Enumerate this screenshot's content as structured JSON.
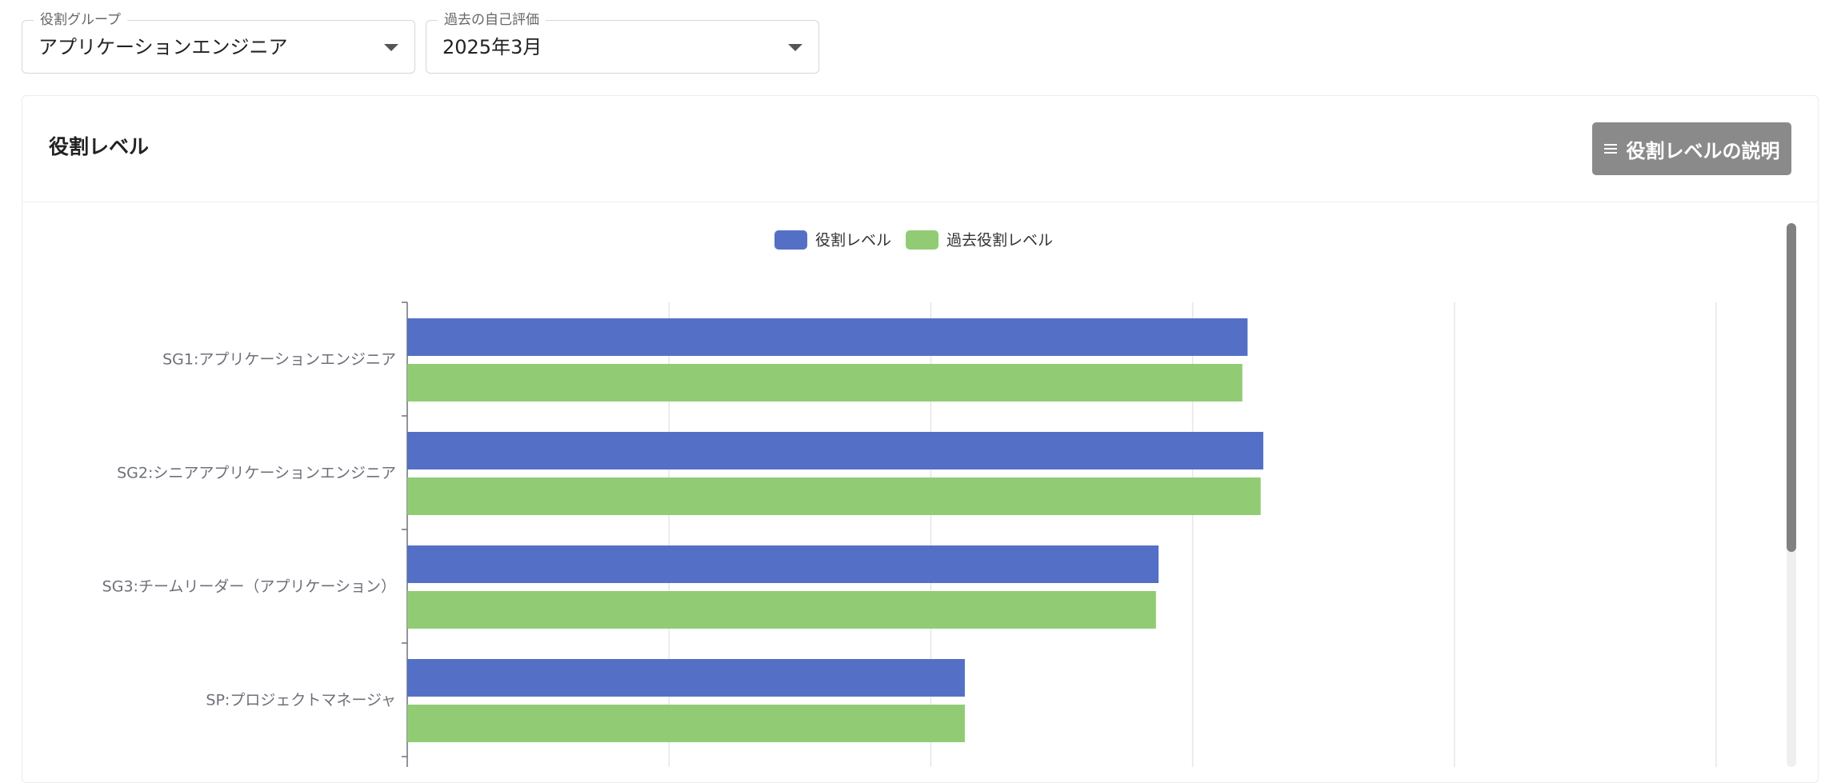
{
  "filters": {
    "role_group": {
      "label": "役割グループ",
      "value": "アプリケーションエンジニア"
    },
    "past_eval": {
      "label": "過去の自己評価",
      "value": "2025年3月"
    }
  },
  "card": {
    "title": "役割レベル",
    "help_button_label": "役割レベルの説明",
    "help_button_icon": "menu-icon"
  },
  "chart_data": {
    "type": "bar",
    "orientation": "horizontal",
    "categories": [
      "SG1:アプリケーションエンジニア",
      "SG2:シニアアプリケーションエンジニア",
      "SG3:チームリーダー（アプリケーション）",
      "SP:プロジェクトマネージャ"
    ],
    "series": [
      {
        "name": "役割レベル",
        "color": "#5470c6",
        "values": [
          3.21,
          3.27,
          2.87,
          2.13
        ]
      },
      {
        "name": "過去役割レベル",
        "color": "#91cc75",
        "values": [
          3.19,
          3.26,
          2.86,
          2.13
        ]
      }
    ],
    "xlim": [
      0,
      5
    ],
    "grid": true,
    "legend_position": "top-center"
  }
}
